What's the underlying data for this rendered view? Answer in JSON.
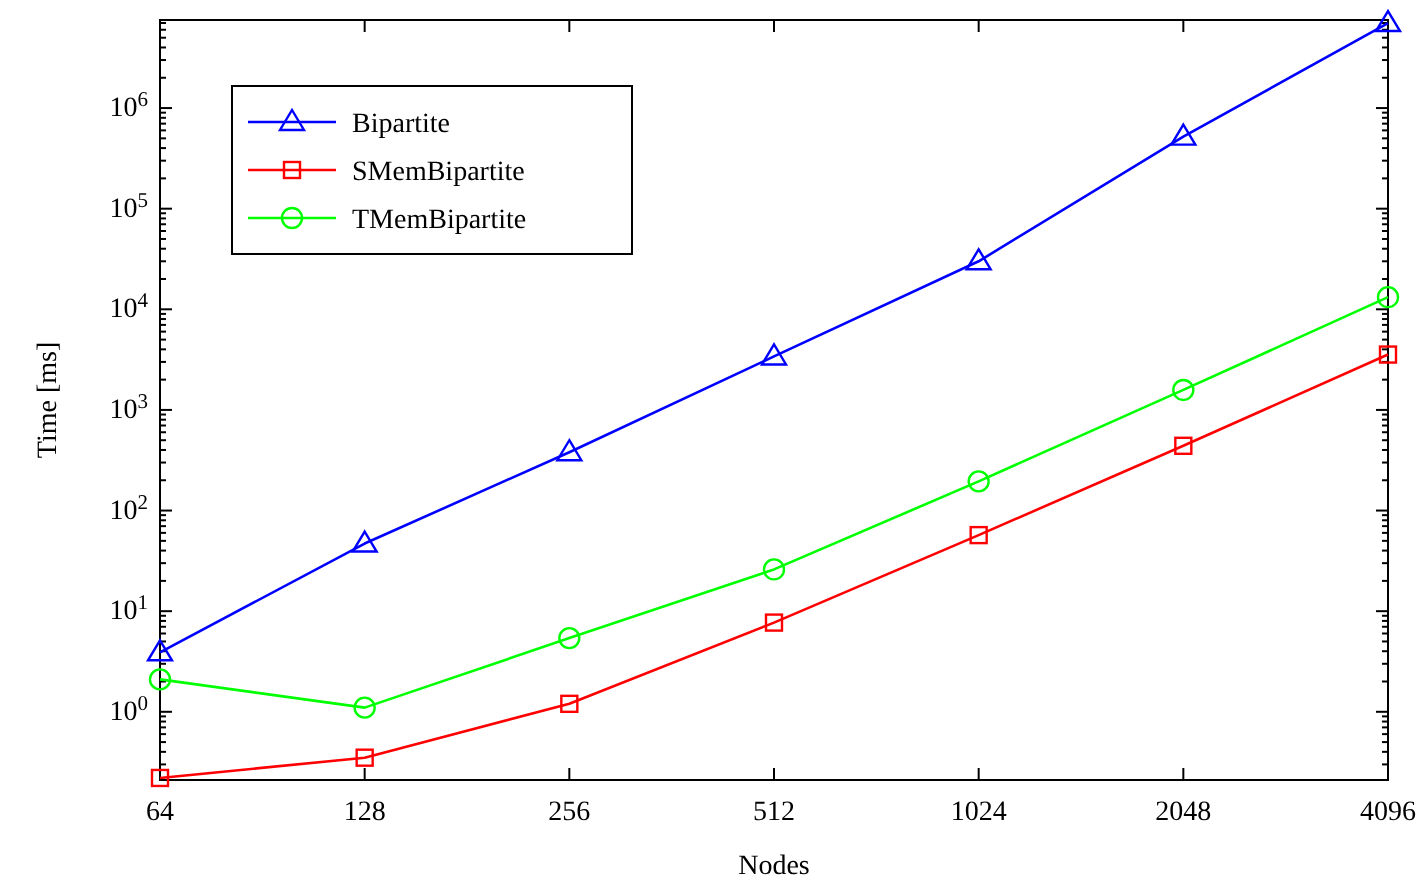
{
  "chart_data": {
    "type": "line",
    "xlabel": "Nodes",
    "ylabel": "Time [ms]",
    "categories": [
      "64",
      "128",
      "256",
      "512",
      "1024",
      "2048",
      "4096"
    ],
    "log": "y",
    "ylim": [
      0.21,
      7500000
    ],
    "yticks": [
      {
        "value": 1,
        "label": "10$^{0}$"
      },
      {
        "value": 10,
        "label": "10$^{1}$"
      },
      {
        "value": 100,
        "label": "10$^{2}$"
      },
      {
        "value": 1000,
        "label": "10$^{3}$"
      },
      {
        "value": 10000,
        "label": "10$^{4}$"
      },
      {
        "value": 100000,
        "label": "10$^{5}$"
      },
      {
        "value": 1000000,
        "label": "10$^{6}$"
      }
    ],
    "grid": false,
    "legend": "top left",
    "line_style": "solid",
    "series": [
      {
        "name": "Bipartite",
        "color": "#0000ff",
        "marker": "triangle",
        "values": [
          3.9,
          47,
          380,
          3400,
          30000,
          520000,
          7000000
        ]
      },
      {
        "name": "SMemBipartite",
        "color": "#ff0000",
        "marker": "square",
        "values": [
          0.22,
          0.35,
          1.2,
          7.7,
          57,
          440,
          3550
        ]
      },
      {
        "name": "TMemBipartite",
        "color": "#00ff00",
        "marker": "circle",
        "values": [
          2.1,
          1.1,
          5.4,
          26,
          195,
          1580,
          13200
        ]
      }
    ]
  }
}
